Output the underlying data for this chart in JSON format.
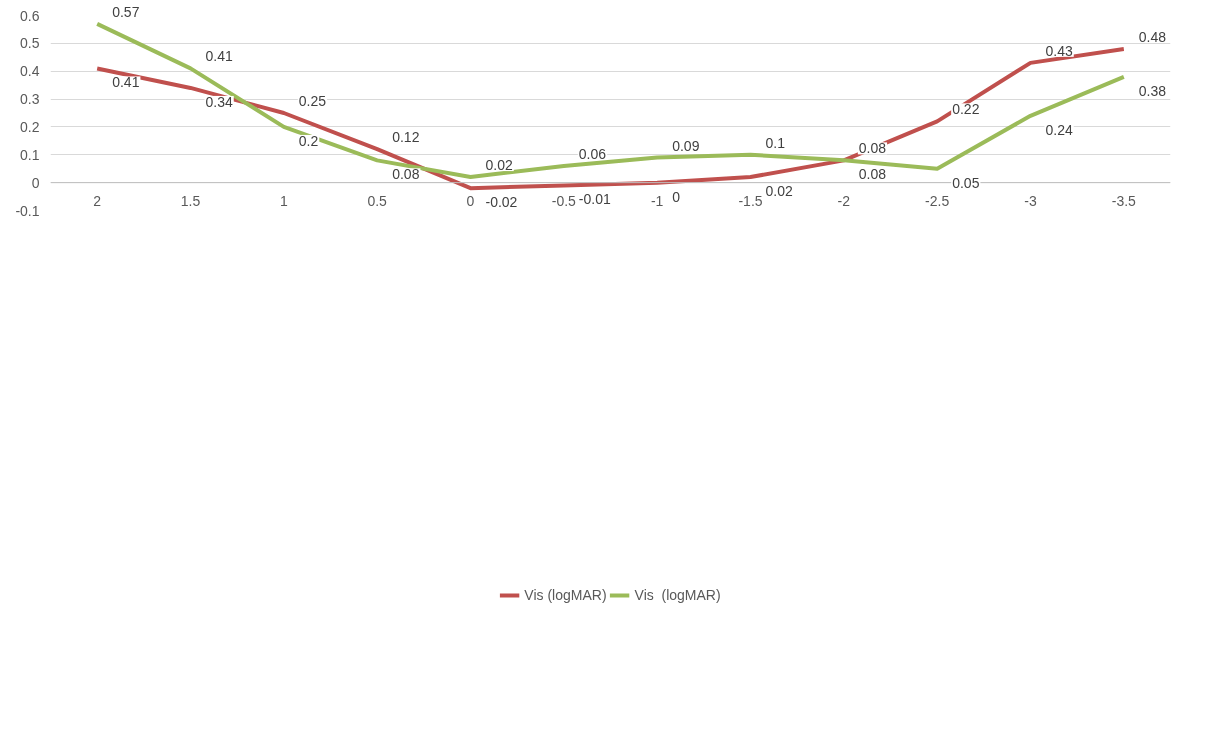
{
  "chart_data": {
    "type": "line",
    "categories": [
      "2",
      "1.5",
      "1",
      "0.5",
      "0",
      "-0.5",
      "-1",
      "-1.5",
      "-2",
      "-2.5",
      "-3",
      "-3.5"
    ],
    "series": [
      {
        "name": "Vis (logMAR)",
        "color": "#c0504d",
        "values": [
          0.41,
          0.34,
          0.25,
          0.12,
          -0.02,
          -0.01,
          0,
          0.02,
          0.08,
          0.22,
          0.43,
          0.48
        ]
      },
      {
        "name": "Vis  (logMAR)",
        "color": "#9bbb59",
        "values": [
          0.57,
          0.41,
          0.2,
          0.08,
          0.02,
          0.06,
          0.09,
          0.1,
          0.08,
          0.05,
          0.24,
          0.38
        ]
      }
    ],
    "ylim": [
      -0.1,
      0.6
    ],
    "yticks": [
      -0.1,
      0,
      0.1,
      0.2,
      0.3,
      0.4,
      0.5,
      0.6
    ],
    "grid": "y",
    "legend": "bottom",
    "data_labels": true,
    "line_style": "solid",
    "marker": "none"
  }
}
